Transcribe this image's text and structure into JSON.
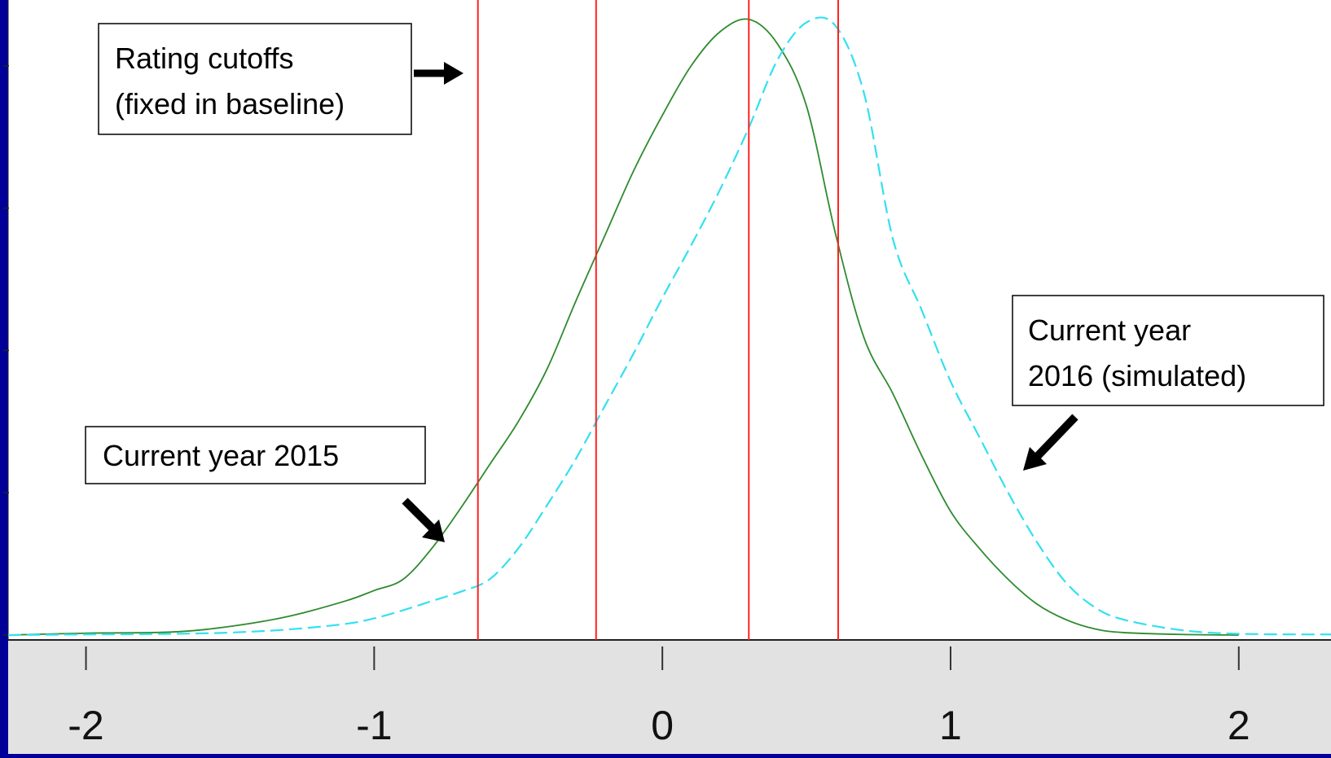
{
  "chart_data": {
    "type": "line",
    "title": "",
    "xlabel": "",
    "ylabel": "",
    "xlim": [
      -2.27,
      2.32
    ],
    "ylim": [
      0,
      1.0
    ],
    "x_ticks": [
      -2,
      -1,
      0,
      1,
      2
    ],
    "x_tick_labels": [
      "-2",
      "-1",
      "0",
      "1",
      "2"
    ],
    "y_ticks": [
      0,
      0.23,
      0.46,
      0.69,
      0.92
    ],
    "grid": false,
    "legend": "none",
    "cutoffs": [
      -0.64,
      -0.23,
      0.3,
      0.61
    ],
    "series": [
      {
        "color": "#2e8b2e",
        "style": "solid",
        "x": [
          -2.27,
          -2.0,
          -1.7,
          -1.5,
          -1.3,
          -1.1,
          -1.0,
          -0.9,
          -0.8,
          -0.7,
          -0.6,
          -0.5,
          -0.4,
          -0.3,
          -0.2,
          -0.1,
          0.0,
          0.1,
          0.2,
          0.3,
          0.4,
          0.5,
          0.6,
          0.7,
          0.8,
          0.9,
          1.0,
          1.1,
          1.2,
          1.3,
          1.4,
          1.5,
          1.6,
          1.8,
          2.0
        ],
        "y": [
          0.0,
          0.003,
          0.005,
          0.014,
          0.03,
          0.055,
          0.072,
          0.09,
          0.14,
          0.205,
          0.275,
          0.345,
          0.43,
          0.54,
          0.645,
          0.75,
          0.84,
          0.92,
          0.975,
          0.995,
          0.955,
          0.855,
          0.65,
          0.48,
          0.39,
          0.29,
          0.2,
          0.14,
          0.09,
          0.05,
          0.025,
          0.01,
          0.004,
          0.001,
          0.0
        ]
      },
      {
        "color": "#33e0f0",
        "style": "dashed",
        "x": [
          -2.27,
          -2.0,
          -1.7,
          -1.5,
          -1.3,
          -1.1,
          -1.0,
          -0.9,
          -0.8,
          -0.7,
          -0.6,
          -0.5,
          -0.4,
          -0.3,
          -0.2,
          -0.1,
          0.0,
          0.1,
          0.2,
          0.3,
          0.4,
          0.5,
          0.6,
          0.7,
          0.8,
          0.9,
          1.0,
          1.1,
          1.2,
          1.3,
          1.4,
          1.5,
          1.6,
          1.8,
          2.0,
          2.32
        ],
        "y": [
          0.0,
          0.001,
          0.002,
          0.004,
          0.009,
          0.018,
          0.027,
          0.04,
          0.055,
          0.07,
          0.09,
          0.14,
          0.21,
          0.285,
          0.37,
          0.455,
          0.545,
          0.63,
          0.72,
          0.82,
          0.93,
          0.99,
          0.985,
          0.875,
          0.64,
          0.525,
          0.41,
          0.32,
          0.23,
          0.15,
          0.085,
          0.045,
          0.025,
          0.008,
          0.002,
          0.001
        ]
      }
    ],
    "annotations": [
      {
        "lines": [
          "Rating cutoffs",
          "(fixed in baseline)"
        ]
      },
      {
        "lines": [
          "Current year 2015"
        ]
      },
      {
        "lines": [
          "Current year",
          "2016 (simulated)"
        ]
      }
    ]
  },
  "colors": {
    "frame": "#000099",
    "plot_bg": "#ffffff",
    "axis_bg": "#e2e2e2",
    "cutoff": "#ff2020"
  }
}
